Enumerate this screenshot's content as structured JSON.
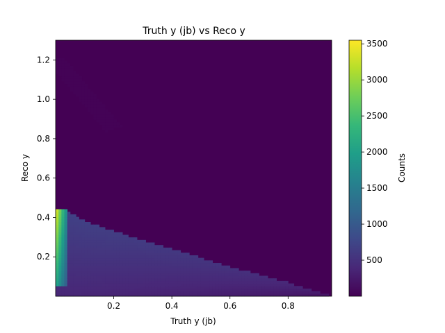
{
  "chart_data": {
    "type": "heatmap",
    "title": "Truth y (jb) vs Reco y",
    "xlabel": "Truth y (jb)",
    "ylabel": "Reco y",
    "xlim": [
      0.0,
      0.95
    ],
    "ylim": [
      0.0,
      1.3
    ],
    "xticks": [
      0.2,
      0.4,
      0.6,
      0.8
    ],
    "xtick_labels": [
      "0.2",
      "0.4",
      "0.6",
      "0.8"
    ],
    "yticks": [
      0.2,
      0.4,
      0.6,
      0.8,
      1.0,
      1.2
    ],
    "ytick_labels": [
      "0.2",
      "0.4",
      "0.6",
      "0.8",
      "1.0",
      "1.2"
    ],
    "colorbar": {
      "label": "Counts",
      "min": 0,
      "max": 3550,
      "ticks": [
        500,
        1000,
        1500,
        2000,
        2500,
        3000,
        3500
      ],
      "tick_labels": [
        "500",
        "1000",
        "1500",
        "2000",
        "2500",
        "3000",
        "3500"
      ]
    },
    "colormap": "viridis",
    "bins": {
      "nx": 95,
      "ny": 100
    },
    "features": {
      "peak_count": 3520,
      "peak_region": {
        "x": [
          0.0,
          0.04
        ],
        "y": [
          0.05,
          0.45
        ]
      },
      "upper_edge": [
        [
          0.0,
          0.44
        ],
        [
          0.03,
          0.44
        ],
        [
          0.1,
          0.38
        ],
        [
          0.2,
          0.33
        ],
        [
          0.4,
          0.24
        ],
        [
          0.6,
          0.15
        ],
        [
          0.8,
          0.07
        ],
        [
          0.95,
          0.0
        ]
      ],
      "body_level": 700,
      "faint_tail": {
        "from": [
          0.0,
          1.2
        ],
        "to": [
          0.2,
          0.85
        ],
        "level": 25
      }
    }
  },
  "colors": {
    "viridis": [
      "#440154",
      "#482878",
      "#3e4989",
      "#31688e",
      "#26828e",
      "#1f9e89",
      "#35b779",
      "#6ece58",
      "#b5de2b",
      "#fde725"
    ]
  }
}
